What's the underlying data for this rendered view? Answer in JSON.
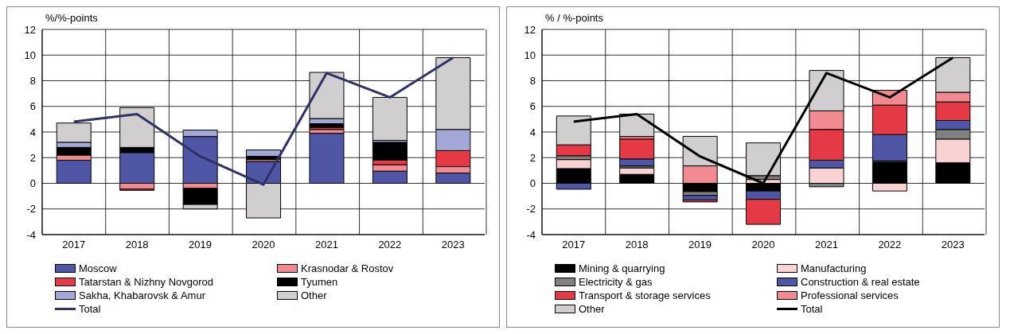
{
  "chart_data": [
    {
      "type": "bar",
      "stacked": true,
      "ylabel": "%/%-points",
      "categories": [
        "2017",
        "2018",
        "2019",
        "2020",
        "2021",
        "2022",
        "2023"
      ],
      "ylim": [
        -4,
        12
      ],
      "yticks": [
        -4,
        -2,
        0,
        2,
        4,
        6,
        8,
        10,
        12
      ],
      "grid": true,
      "legend": "bottom",
      "series": [
        {
          "name": "Moscow",
          "color": "#4f56a5",
          "values": [
            1.8,
            2.4,
            3.65,
            1.7,
            3.9,
            0.95,
            0.8
          ]
        },
        {
          "name": "Krasnodar & Rostov",
          "color": "#f28b91",
          "values": [
            0.4,
            -0.45,
            -0.4,
            0.15,
            0.3,
            0.5,
            0.5
          ]
        },
        {
          "name": "Tatarstan & Nizhny Novgorod",
          "color": "#e63946",
          "values": [
            0,
            -0.1,
            0,
            null,
            0.15,
            0.35,
            1.25
          ]
        },
        {
          "name": "Tyumen",
          "color": "#000000",
          "values": [
            0.6,
            0.4,
            -1.25,
            0.25,
            0.3,
            1.4,
            0
          ]
        },
        {
          "name": "Sakha, Khabarovsk & Amur",
          "color": "#a3a8d6",
          "values": [
            0.4,
            null,
            0.5,
            0.5,
            0.4,
            0.15,
            1.65
          ]
        },
        {
          "name": "Other",
          "color": "#d0cece",
          "values": [
            1.5,
            3.1,
            -0.35,
            -2.7,
            3.6,
            3.35,
            5.6
          ]
        },
        {
          "name": "Total",
          "type": "line",
          "color": "#2e3266",
          "values": [
            4.8,
            5.4,
            2.1,
            -0.1,
            8.6,
            6.7,
            9.8
          ]
        }
      ]
    },
    {
      "type": "bar",
      "stacked": true,
      "ylabel": "% / %-points",
      "categories": [
        "2017",
        "2018",
        "2019",
        "2020",
        "2021",
        "2022",
        "2023"
      ],
      "ylim": [
        -4,
        12
      ],
      "yticks": [
        -4,
        -2,
        0,
        2,
        4,
        6,
        8,
        10,
        12
      ],
      "grid": true,
      "legend": "bottom",
      "series": [
        {
          "name": "Mining & quarrying",
          "color": "#000000",
          "values": [
            1.15,
            0.7,
            -0.65,
            -0.6,
            null,
            1.65,
            1.6
          ]
        },
        {
          "name": "Manufacturing",
          "color": "#f9d3d3",
          "values": [
            0.7,
            0.5,
            0,
            0.3,
            1.2,
            -0.6,
            1.85
          ]
        },
        {
          "name": "Electricity & gas",
          "color": "#808080",
          "values": [
            0.3,
            0.15,
            -0.3,
            0.3,
            -0.27,
            0.1,
            0.75
          ]
        },
        {
          "name": "Construction & real estate",
          "color": "#4f56a5",
          "values": [
            -0.46,
            0.55,
            -0.35,
            -0.65,
            0.6,
            2.05,
            0.7
          ]
        },
        {
          "name": "Transport & storage services",
          "color": "#e63946",
          "values": [
            0.85,
            1.55,
            -0.15,
            -1.95,
            2.4,
            2.3,
            1.45
          ]
        },
        {
          "name": "Professional services",
          "color": "#f28b91",
          "values": [
            0,
            0.2,
            1.36,
            0,
            1.45,
            1.15,
            0.75
          ]
        },
        {
          "name": "Other",
          "color": "#d0cece",
          "values": [
            2.25,
            1.75,
            2.3,
            2.55,
            3.15,
            0,
            2.7
          ]
        },
        {
          "name": "Total",
          "type": "line",
          "color": "#000000",
          "values": [
            4.8,
            5.4,
            2.1,
            0,
            8.6,
            6.7,
            9.8
          ]
        }
      ]
    }
  ]
}
